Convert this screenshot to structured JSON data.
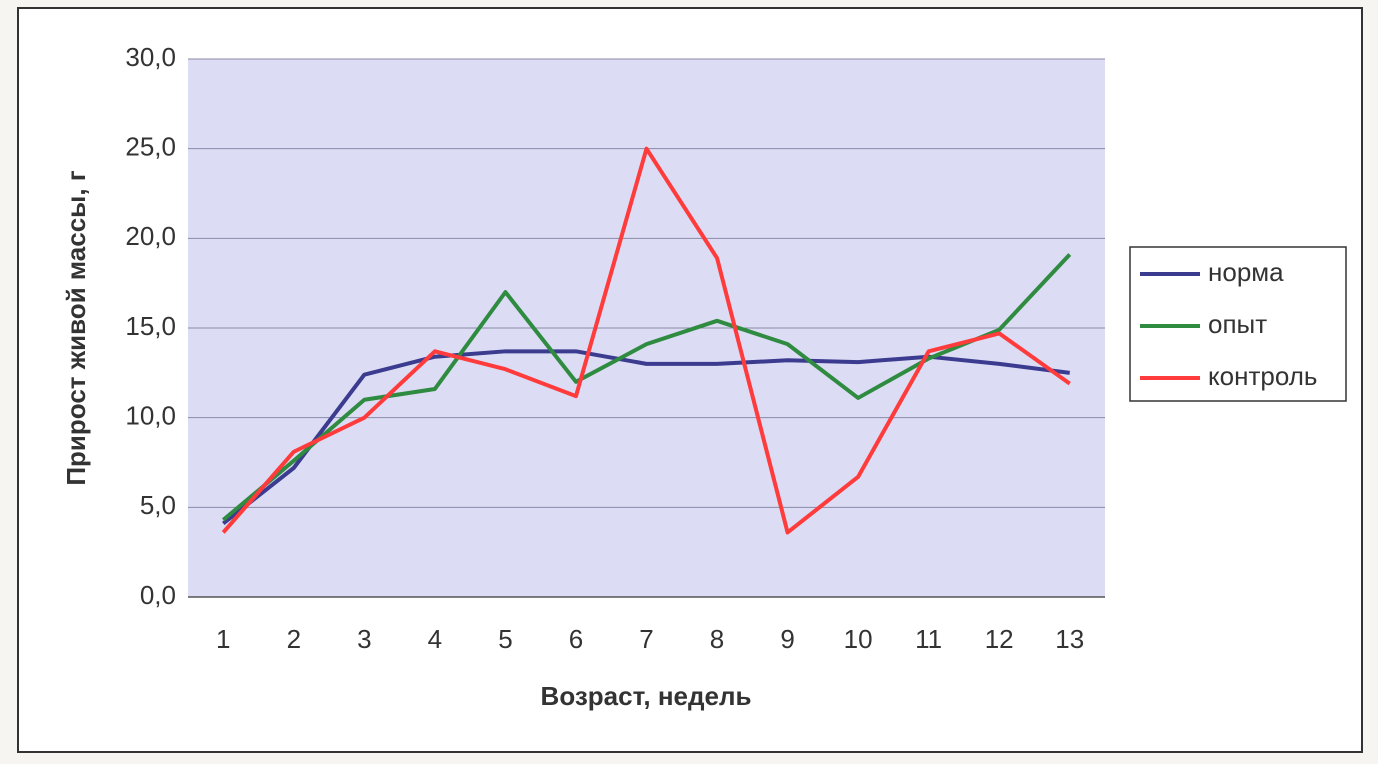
{
  "chart_data": {
    "type": "line",
    "x_label": "Возраст, недель",
    "y_label": "Прирост живой массы, г",
    "categories": [
      "1",
      "2",
      "3",
      "4",
      "5",
      "6",
      "7",
      "8",
      "9",
      "10",
      "11",
      "12",
      "13"
    ],
    "series": [
      {
        "name": "норма",
        "color": "#3b3b8f",
        "values": [
          4.1,
          7.2,
          12.4,
          13.4,
          13.7,
          13.7,
          13.0,
          13.0,
          13.2,
          13.1,
          13.4,
          13.0,
          12.5
        ]
      },
      {
        "name": "опыт",
        "color": "#2e8b40",
        "values": [
          4.3,
          7.6,
          11.0,
          11.6,
          17.0,
          12.0,
          14.1,
          15.4,
          14.1,
          11.1,
          13.3,
          14.9,
          19.1
        ]
      },
      {
        "name": "контроль",
        "color": "#ff3b3b",
        "values": [
          3.6,
          8.1,
          10.0,
          13.7,
          12.7,
          11.2,
          25.0,
          18.9,
          3.6,
          6.7,
          13.7,
          14.7,
          11.9
        ]
      }
    ],
    "ylim": [
      0,
      30
    ],
    "yticks": [
      {
        "value": 0,
        "label": "0,0"
      },
      {
        "value": 5,
        "label": "5,0"
      },
      {
        "value": 10,
        "label": "10,0"
      },
      {
        "value": 15,
        "label": "15,0"
      },
      {
        "value": 20,
        "label": "20,0"
      },
      {
        "value": 25,
        "label": "25,0"
      },
      {
        "value": 30,
        "label": "30,0"
      }
    ],
    "grid": true,
    "legend": "right"
  }
}
